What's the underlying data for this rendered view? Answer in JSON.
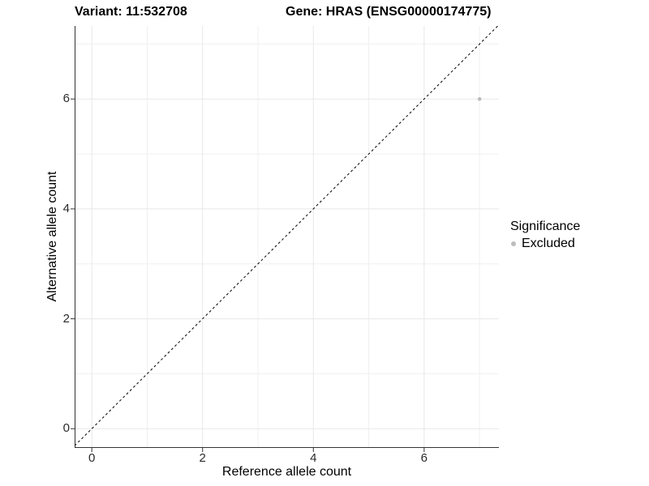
{
  "titles": {
    "variant": "Variant: 11:532708",
    "gene": "Gene: HRAS (ENSG00000174775)"
  },
  "legend": {
    "title": "Significance",
    "items": [
      {
        "label": "Excluded",
        "color": "#bdbdbd"
      }
    ]
  },
  "chart_data": {
    "type": "scatter",
    "title": "Variant: 11:532708 / Gene: HRAS (ENSG00000174775)",
    "xlabel": "Reference allele count",
    "ylabel": "Alternative allele count",
    "xlim": [
      -0.31,
      7.35
    ],
    "ylim": [
      -0.35,
      7.33
    ],
    "x_major_ticks": [
      0,
      2,
      4,
      6
    ],
    "y_major_ticks": [
      0,
      2,
      4,
      6
    ],
    "x_minor_ticks": [
      1,
      3,
      5,
      7
    ],
    "y_minor_ticks": [
      1,
      3,
      5,
      7
    ],
    "grid": true,
    "legend_position": "right",
    "series": [
      {
        "name": "Excluded",
        "color": "#bdbdbd",
        "points": [
          {
            "x": 7,
            "y": 6
          }
        ]
      }
    ],
    "reference_line": {
      "type": "identity",
      "style": "dashed",
      "color": "#000000",
      "dash": "3,3"
    },
    "colors": {
      "grid_major": "#e7e7e7",
      "grid_minor": "#f0f0f0",
      "axis_line": "#333333",
      "tick_label": "#2b2b2b",
      "background": "#ffffff"
    }
  }
}
